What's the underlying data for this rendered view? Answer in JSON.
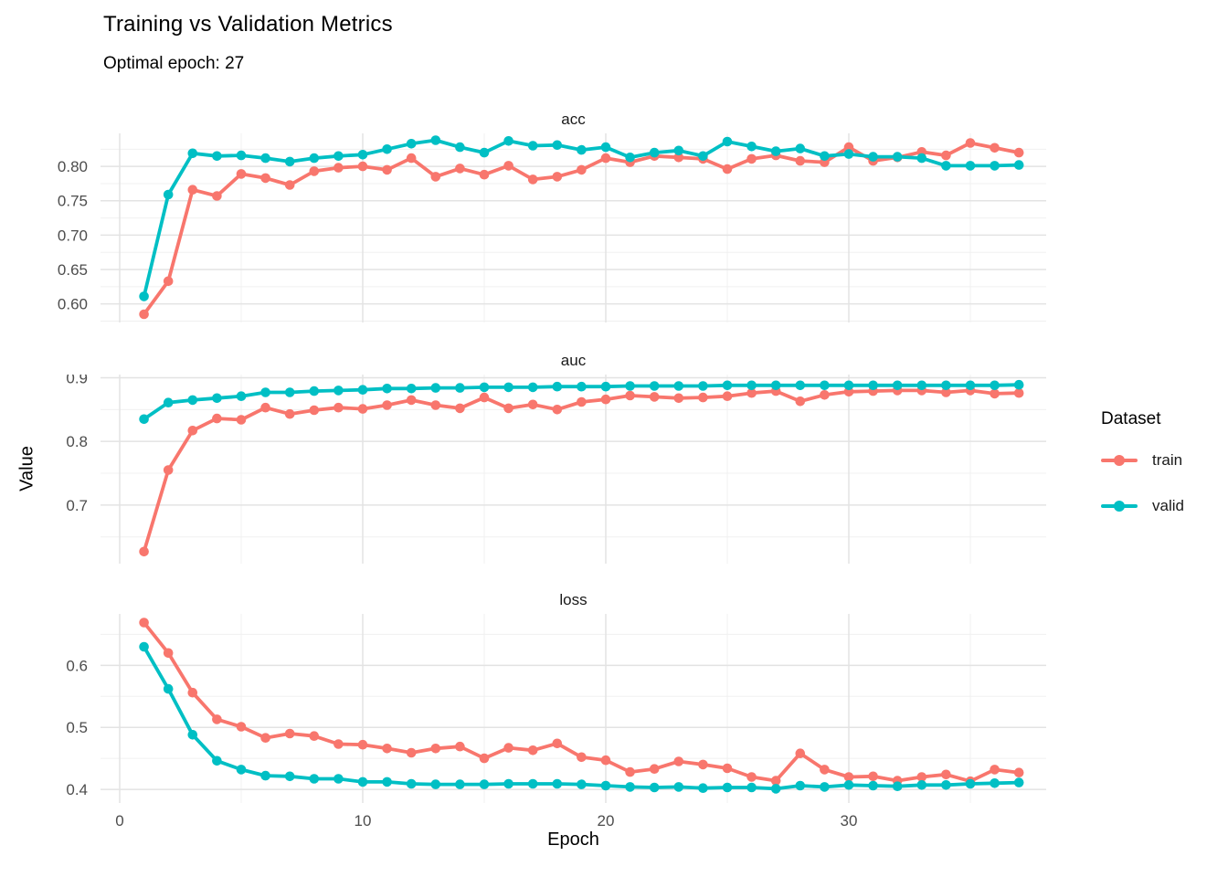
{
  "header": {
    "title": "Training vs Validation Metrics",
    "subtitle": "Optimal epoch: 27"
  },
  "axes": {
    "x_title": "Epoch",
    "y_title": "Value"
  },
  "legend": {
    "title": "Dataset",
    "position": "right",
    "items": [
      {
        "label": "train",
        "color": "#F8766D"
      },
      {
        "label": "valid",
        "color": "#00BFC4"
      }
    ]
  },
  "colors": {
    "train": "#F8766D",
    "valid": "#00BFC4",
    "grid_major": "#E3E3E3",
    "grid_minor": "#F0F0F0",
    "axis_text": "#4D4D4D",
    "background": "#FFFFFF"
  },
  "chart_data": {
    "type": "line",
    "title": "Training vs Validation Metrics",
    "subtitle": "Optimal epoch: 27",
    "optimal_epoch": 27,
    "xlabel": "Epoch",
    "ylabel": "Value",
    "legend_position": "right",
    "grid": true,
    "xlim": [
      -0.8,
      38.8
    ],
    "x_ticks": {
      "values": [
        0,
        10,
        20,
        30
      ],
      "labels": [
        "0",
        "10",
        "20",
        "30"
      ]
    },
    "x_minor": [
      5,
      15,
      25,
      35
    ],
    "x": [
      1,
      2,
      3,
      4,
      5,
      6,
      7,
      8,
      9,
      10,
      11,
      12,
      13,
      14,
      15,
      16,
      17,
      18,
      19,
      20,
      21,
      22,
      23,
      24,
      25,
      26,
      27,
      28,
      29,
      30,
      31,
      32,
      33,
      34,
      35,
      36,
      37
    ],
    "facets": [
      {
        "label": "acc",
        "ylim": [
          0.573,
          0.848
        ],
        "yticks": {
          "values": [
            0.6,
            0.65,
            0.7,
            0.75,
            0.8
          ],
          "labels": [
            "0.60",
            "0.65",
            "0.70",
            "0.75",
            "0.80"
          ]
        },
        "yminor": [
          0.575,
          0.625,
          0.675,
          0.725,
          0.775,
          0.825
        ],
        "series": [
          {
            "name": "train",
            "values": [
              0.585,
              0.633,
              0.766,
              0.757,
              0.789,
              0.783,
              0.773,
              0.793,
              0.798,
              0.8,
              0.795,
              0.812,
              0.785,
              0.797,
              0.788,
              0.801,
              0.781,
              0.785,
              0.795,
              0.812,
              0.806,
              0.815,
              0.813,
              0.811,
              0.796,
              0.811,
              0.816,
              0.808,
              0.806,
              0.828,
              0.808,
              0.813,
              0.821,
              0.816,
              0.834,
              0.827,
              0.82
            ]
          },
          {
            "name": "valid",
            "values": [
              0.611,
              0.759,
              0.819,
              0.815,
              0.816,
              0.812,
              0.807,
              0.812,
              0.815,
              0.817,
              0.825,
              0.833,
              0.838,
              0.828,
              0.82,
              0.837,
              0.83,
              0.831,
              0.824,
              0.828,
              0.813,
              0.82,
              0.823,
              0.815,
              0.836,
              0.829,
              0.822,
              0.826,
              0.815,
              0.818,
              0.814,
              0.814,
              0.812,
              0.801,
              0.801,
              0.801,
              0.802
            ]
          }
        ]
      },
      {
        "label": "auc",
        "ylim": [
          0.608,
          0.905
        ],
        "yticks": {
          "values": [
            0.7,
            0.8,
            0.9
          ],
          "labels": [
            "0.7",
            "0.8",
            "0.9"
          ]
        },
        "yminor": [
          0.65,
          0.75,
          0.85
        ],
        "series": [
          {
            "name": "train",
            "values": [
              0.627,
              0.755,
              0.817,
              0.836,
              0.834,
              0.853,
              0.843,
              0.849,
              0.853,
              0.851,
              0.857,
              0.865,
              0.857,
              0.852,
              0.869,
              0.852,
              0.858,
              0.85,
              0.862,
              0.866,
              0.872,
              0.87,
              0.868,
              0.869,
              0.871,
              0.876,
              0.879,
              0.863,
              0.873,
              0.878,
              0.879,
              0.88,
              0.88,
              0.877,
              0.88,
              0.875,
              0.876
            ]
          },
          {
            "name": "valid",
            "values": [
              0.835,
              0.861,
              0.865,
              0.868,
              0.871,
              0.877,
              0.877,
              0.879,
              0.88,
              0.881,
              0.883,
              0.883,
              0.884,
              0.884,
              0.885,
              0.885,
              0.885,
              0.886,
              0.886,
              0.886,
              0.887,
              0.887,
              0.887,
              0.887,
              0.888,
              0.888,
              0.888,
              0.888,
              0.888,
              0.888,
              0.888,
              0.888,
              0.888,
              0.888,
              0.888,
              0.888,
              0.889
            ]
          }
        ]
      },
      {
        "label": "loss",
        "ylim": [
          0.378,
          0.683
        ],
        "yticks": {
          "values": [
            0.4,
            0.5,
            0.6
          ],
          "labels": [
            "0.4",
            "0.5",
            "0.6"
          ]
        },
        "yminor": [
          0.45,
          0.55,
          0.65
        ],
        "series": [
          {
            "name": "train",
            "values": [
              0.669,
              0.62,
              0.556,
              0.513,
              0.501,
              0.483,
              0.49,
              0.486,
              0.473,
              0.472,
              0.466,
              0.459,
              0.466,
              0.469,
              0.45,
              0.467,
              0.463,
              0.474,
              0.452,
              0.447,
              0.428,
              0.433,
              0.445,
              0.44,
              0.434,
              0.42,
              0.414,
              0.458,
              0.432,
              0.42,
              0.421,
              0.414,
              0.42,
              0.424,
              0.413,
              0.432,
              0.427
            ]
          },
          {
            "name": "valid",
            "values": [
              0.63,
              0.562,
              0.488,
              0.446,
              0.432,
              0.422,
              0.421,
              0.417,
              0.417,
              0.412,
              0.412,
              0.409,
              0.408,
              0.408,
              0.408,
              0.409,
              0.409,
              0.409,
              0.408,
              0.406,
              0.404,
              0.403,
              0.404,
              0.402,
              0.403,
              0.403,
              0.401,
              0.406,
              0.404,
              0.407,
              0.406,
              0.405,
              0.407,
              0.407,
              0.409,
              0.41,
              0.411
            ]
          }
        ]
      }
    ]
  }
}
